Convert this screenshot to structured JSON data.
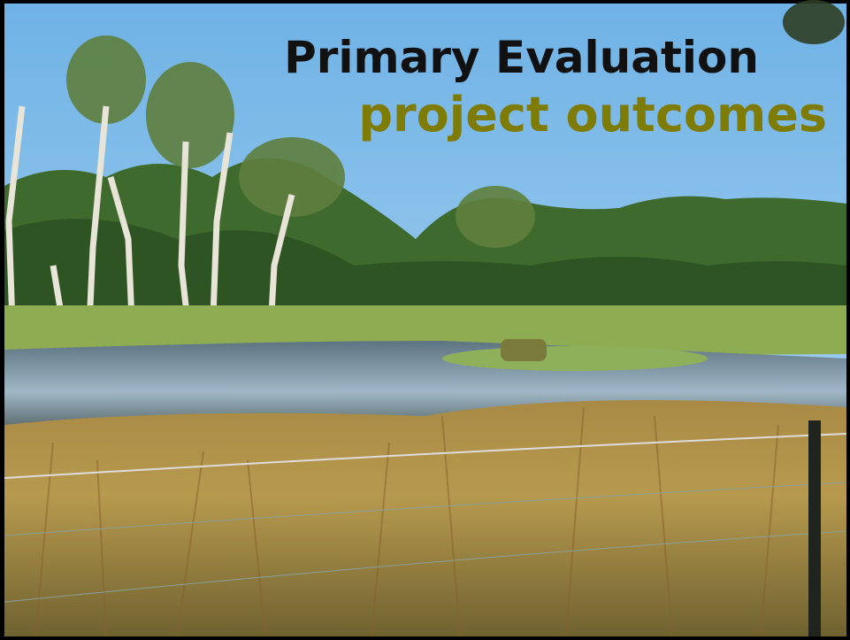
{
  "slide": {
    "title": "Primary Evaluation",
    "subtitle": "project outcomes"
  }
}
